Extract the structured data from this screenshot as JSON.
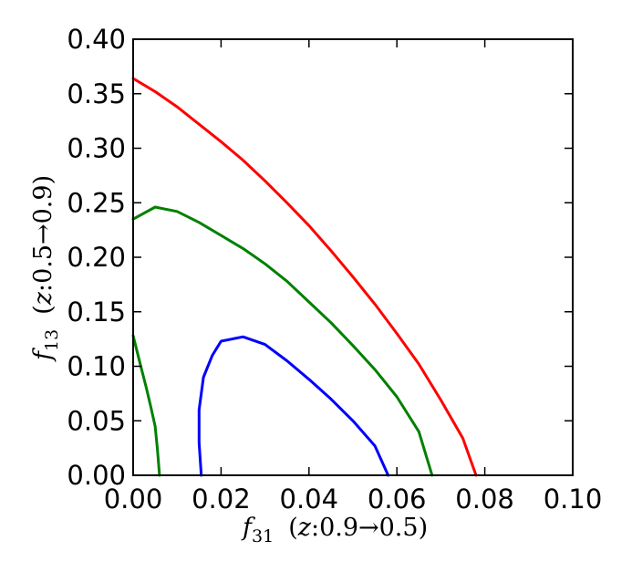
{
  "chart_data": {
    "type": "line",
    "title": "",
    "xlabel": {
      "var": "f",
      "sub": "31",
      "note_open": "(",
      "note_var": "z",
      "note_rest": ":0.9→0.5)"
    },
    "ylabel": {
      "var": "f",
      "sub": "13",
      "note_open": "(",
      "note_var": "z",
      "note_rest": ":0.5→0.9)"
    },
    "xlim": [
      0.0,
      0.1
    ],
    "ylim": [
      0.0,
      0.4
    ],
    "xticks": [
      0.0,
      0.02,
      0.04,
      0.06,
      0.08,
      0.1
    ],
    "xtick_labels": [
      "0.00",
      "0.02",
      "0.04",
      "0.06",
      "0.08",
      "0.10"
    ],
    "yticks": [
      0.0,
      0.05,
      0.1,
      0.15,
      0.2,
      0.25,
      0.3,
      0.35,
      0.4
    ],
    "ytick_labels": [
      "0.00",
      "0.05",
      "0.10",
      "0.15",
      "0.20",
      "0.25",
      "0.30",
      "0.35",
      "0.40"
    ],
    "grid": false,
    "legend": "none",
    "series": [
      {
        "color": "#ff0000",
        "points": [
          [
            0.0,
            0.364
          ],
          [
            0.005,
            0.352
          ],
          [
            0.01,
            0.338
          ],
          [
            0.015,
            0.322
          ],
          [
            0.02,
            0.306
          ],
          [
            0.025,
            0.289
          ],
          [
            0.03,
            0.27
          ],
          [
            0.035,
            0.25
          ],
          [
            0.04,
            0.229
          ],
          [
            0.045,
            0.206
          ],
          [
            0.05,
            0.182
          ],
          [
            0.055,
            0.157
          ],
          [
            0.06,
            0.13
          ],
          [
            0.065,
            0.102
          ],
          [
            0.07,
            0.069
          ],
          [
            0.075,
            0.034
          ],
          [
            0.078,
            0.0
          ]
        ]
      },
      {
        "color": "#008000",
        "points": [
          [
            0.0,
            0.235
          ],
          [
            0.005,
            0.246
          ],
          [
            0.01,
            0.242
          ],
          [
            0.015,
            0.232
          ],
          [
            0.02,
            0.22
          ],
          [
            0.025,
            0.208
          ],
          [
            0.03,
            0.194
          ],
          [
            0.035,
            0.178
          ],
          [
            0.04,
            0.159
          ],
          [
            0.045,
            0.14
          ],
          [
            0.05,
            0.119
          ],
          [
            0.055,
            0.097
          ],
          [
            0.06,
            0.072
          ],
          [
            0.065,
            0.04
          ],
          [
            0.068,
            0.0
          ]
        ]
      },
      {
        "color": "#008000",
        "points": [
          [
            0.0,
            0.128
          ],
          [
            0.001,
            0.112
          ],
          [
            0.002,
            0.096
          ],
          [
            0.003,
            0.08
          ],
          [
            0.004,
            0.063
          ],
          [
            0.005,
            0.045
          ],
          [
            0.0055,
            0.025
          ],
          [
            0.006,
            0.0
          ]
        ]
      },
      {
        "color": "#0000ff",
        "points": [
          [
            0.0155,
            0.0
          ],
          [
            0.015,
            0.03
          ],
          [
            0.015,
            0.06
          ],
          [
            0.016,
            0.09
          ],
          [
            0.018,
            0.11
          ],
          [
            0.02,
            0.123
          ],
          [
            0.025,
            0.127
          ],
          [
            0.03,
            0.12
          ],
          [
            0.035,
            0.105
          ],
          [
            0.04,
            0.088
          ],
          [
            0.045,
            0.07
          ],
          [
            0.05,
            0.05
          ],
          [
            0.055,
            0.027
          ],
          [
            0.058,
            0.0
          ]
        ]
      }
    ]
  }
}
